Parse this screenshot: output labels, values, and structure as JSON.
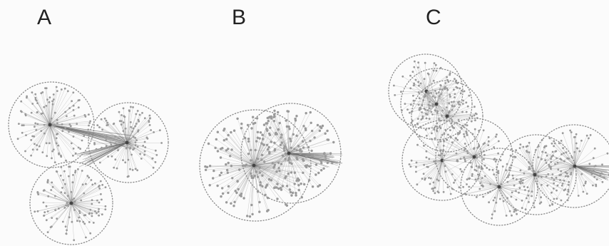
{
  "panels": [
    {
      "label": "A"
    },
    {
      "label": "B"
    },
    {
      "label": "C"
    }
  ],
  "colors": {
    "background": "#fbfbfb",
    "node": "#9a9a9a",
    "edge": "#707070",
    "ring": "#8a8a8a",
    "label": "#222222"
  }
}
